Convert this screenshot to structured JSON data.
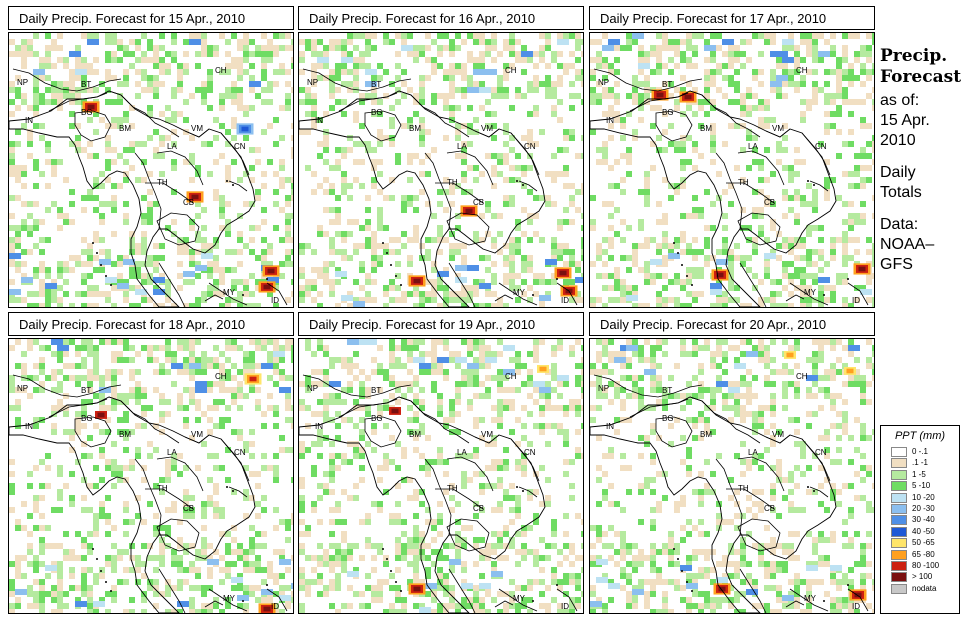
{
  "panels": [
    {
      "title": "Daily Precip. Forecast for  15 Apr., 2010"
    },
    {
      "title": "Daily Precip. Forecast for  16 Apr., 2010"
    },
    {
      "title": "Daily Precip. Forecast for  17 Apr., 2010"
    },
    {
      "title": "Daily Precip. Forecast for  18 Apr., 2010"
    },
    {
      "title": "Daily Precip. Forecast for  19 Apr., 2010"
    },
    {
      "title": "Daily Precip. Forecast for  20 Apr., 2010"
    }
  ],
  "map_labels": {
    "np": "NP",
    "bt": "BT",
    "bg": "BG",
    "in": "IN",
    "ch": "CH",
    "bm": "BM",
    "vm": "VM",
    "la": "LA",
    "th": "TH",
    "cb": "CB",
    "cn": "CN",
    "my": "MY",
    "id": "ID"
  },
  "sidebar": {
    "title_line1": "Precip.",
    "title_line2": "Forecast",
    "asof_label": "as of:",
    "date_line1": "15 Apr.",
    "date_line2": "2010",
    "daily_line1": "Daily",
    "daily_line2": "Totals",
    "data_line1": "Data:",
    "data_line2": "NOAA–",
    "data_line3": "GFS"
  },
  "legend": {
    "title": "PPT (mm)",
    "items": [
      {
        "label": "0 -.1",
        "color": "#ffffff"
      },
      {
        "label": ".1 -1",
        "color": "#f1dfc2"
      },
      {
        "label": "1 -5",
        "color": "#b5ea9f"
      },
      {
        "label": "5 -10",
        "color": "#6fdc63"
      },
      {
        "label": "10 -20",
        "color": "#bde2f3"
      },
      {
        "label": "20 -30",
        "color": "#8cbfef"
      },
      {
        "label": "30 -40",
        "color": "#4f8fe6"
      },
      {
        "label": "40 -50",
        "color": "#1f59d6"
      },
      {
        "label": "50 -65",
        "color": "#ffe56a"
      },
      {
        "label": "65 -80",
        "color": "#ffa01f"
      },
      {
        "label": "80 -100",
        "color": "#cc2010"
      },
      {
        "label": "> 100",
        "color": "#7a1010"
      },
      {
        "label": "nodata",
        "color": "#c8c8c8"
      }
    ]
  }
}
